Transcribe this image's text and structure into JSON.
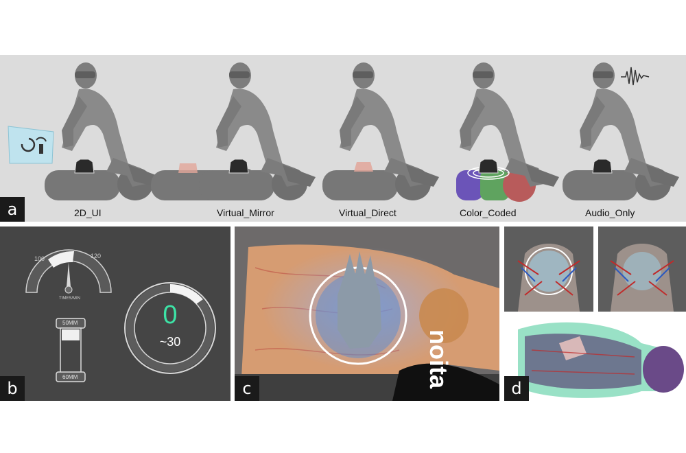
{
  "panel_a": {
    "letter": "a",
    "conditions": [
      {
        "label": "2D_UI"
      },
      {
        "label": "Virtual_Mirror"
      },
      {
        "label": "Virtual_Direct"
      },
      {
        "label": "Color_Coded"
      },
      {
        "label": "Audio_Only"
      }
    ]
  },
  "panel_b": {
    "letter": "b",
    "gauge": {
      "tick_low": "100",
      "tick_high": "120",
      "unit": "TIMES/MIN"
    },
    "depth": {
      "top": "50MM",
      "bottom": "60MM"
    },
    "rate_value": "0",
    "rate_target": "~30",
    "accent_color": "#3de3a6"
  },
  "panel_c": {
    "letter": "c",
    "overlay_text": "noita"
  },
  "panel_d": {
    "letter": "d"
  }
}
